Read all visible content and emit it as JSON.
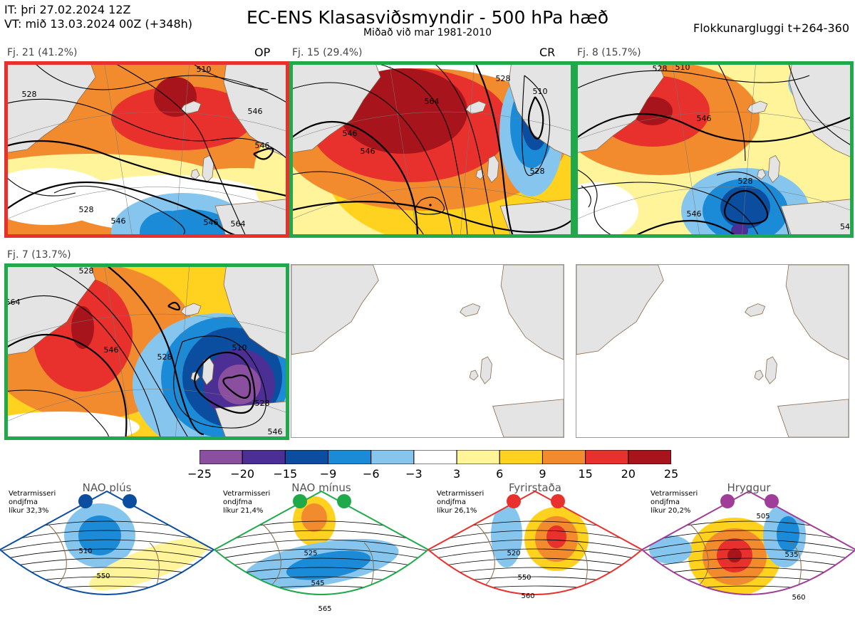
{
  "header": {
    "it": "IT: þri 27.02.2024 12Z",
    "vt": "VT: mið 13.03.2024 00Z  (+348h)",
    "title": "EC-ENS Klasasviðsmyndir - 500 hPa hæð",
    "subtitle": "Miðað við mar 1981-2010",
    "window": "Flokkunargluggi t+264-360"
  },
  "clusters": [
    {
      "label": "Fj. 21 (41.2%)",
      "tag": "OP",
      "border_color": "#e8302c",
      "contours": [
        "528",
        "546",
        "510",
        "528",
        "546",
        "546",
        "546",
        "564"
      ]
    },
    {
      "label": "Fj. 15 (29.4%)",
      "tag": "CR",
      "border_color": "#1fa94a",
      "contours": [
        "564",
        "546",
        "528",
        "510",
        "528",
        "546"
      ]
    },
    {
      "label": "Fj. 8 (15.7%)",
      "tag": "",
      "border_color": "#1fa94a",
      "contours": [
        "528",
        "510",
        "546",
        "528",
        "546",
        "54"
      ]
    },
    {
      "label": "Fj. 7 (13.7%)",
      "tag": "",
      "border_color": "#1fa94a",
      "contours": [
        "528",
        "546",
        "528",
        "510",
        "528",
        "546",
        "564"
      ]
    }
  ],
  "colorbar": {
    "labels": [
      "−25",
      "−20",
      "−15",
      "−9",
      "−6",
      "−3",
      "3",
      "6",
      "9",
      "15",
      "20",
      "25"
    ],
    "colors": [
      "#8b4fa0",
      "#4b2f95",
      "#0b4ea0",
      "#1c8bd7",
      "#86c6ee",
      "#ffffff",
      "#fff49a",
      "#ffd21f",
      "#f28b2e",
      "#e8302c",
      "#a8141b"
    ]
  },
  "regimes": [
    {
      "title": "NAO plús",
      "note": [
        "Vetrarmisseri",
        "ondjfma",
        "líkur 32,3%"
      ],
      "color": "#0b4ea0",
      "contours": [
        "510",
        "550"
      ]
    },
    {
      "title": "NAO mínus",
      "note": [
        "Vetrarmisseri",
        "ondjfma",
        "líkur 21,4%"
      ],
      "color": "#1fa94a",
      "contours": [
        "525",
        "545",
        "565"
      ]
    },
    {
      "title": "Fyrirstaða",
      "note": [
        "Vetrarmisseri",
        "ondjfma",
        "líkur 26,1%"
      ],
      "color": "#e8302c",
      "contours": [
        "520",
        "550",
        "560"
      ]
    },
    {
      "title": "Hryggur",
      "note": [
        "Vetrarmisseri",
        "ondjfma",
        "líkur 20,2%"
      ],
      "color": "#a03d98",
      "contours": [
        "505",
        "535",
        "560"
      ]
    }
  ]
}
